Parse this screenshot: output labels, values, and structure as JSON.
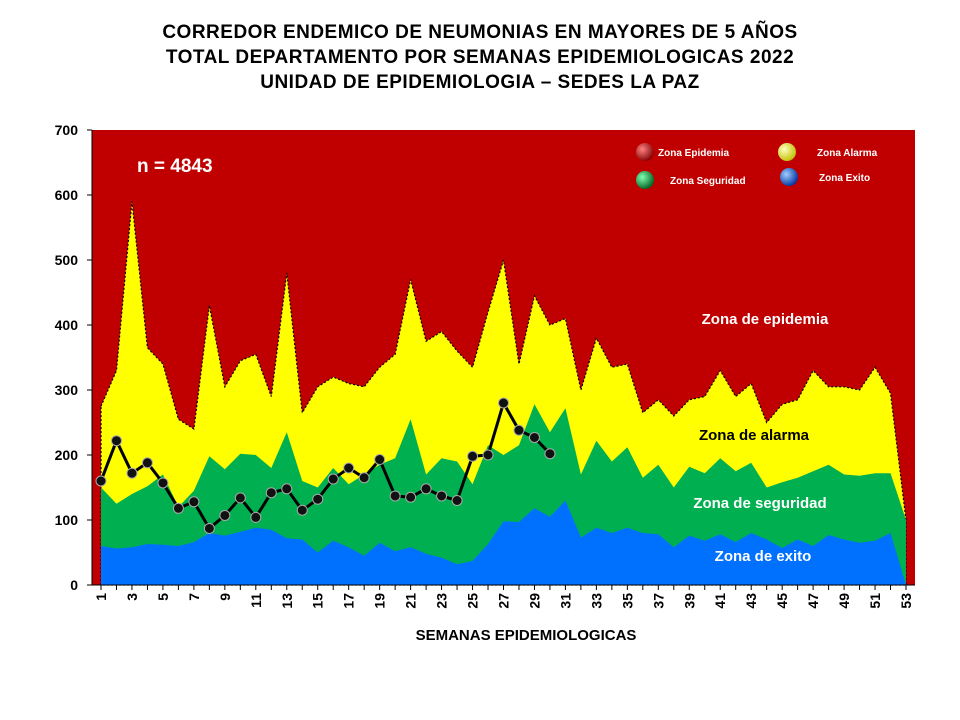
{
  "chart_data": {
    "type": "area",
    "title": [
      "CORREDOR ENDEMICO DE NEUMONIAS EN MAYORES DE 5 AÑOS",
      "TOTAL DEPARTAMENTO POR SEMANAS EPIDEMIOLOGICAS 2022",
      "UNIDAD DE EPIDEMIOLOGIA – SEDES LA PAZ"
    ],
    "x_label": "SEMANAS EPIDEMIOLOGICAS",
    "annotations": {
      "n": "n = 4843",
      "epidemia": "Zona de epidemia",
      "alarma": "Zona de alarma",
      "seguridad": "Zona de  seguridad",
      "exito": "Zona de exito"
    },
    "categories": [
      "1",
      null,
      "3",
      null,
      "5",
      null,
      "7",
      null,
      "9",
      null,
      "11",
      null,
      "13",
      null,
      "15",
      null,
      "17",
      null,
      "19",
      null,
      "21",
      null,
      "23",
      null,
      "25",
      null,
      "27",
      null,
      "29",
      null,
      "31",
      null,
      "33",
      null,
      "35",
      null,
      "37",
      null,
      "39",
      null,
      "41",
      null,
      "43",
      null,
      "45",
      null,
      "47",
      null,
      "49",
      null,
      "51",
      null,
      "53"
    ],
    "epidemic_zone": {
      "name": "Zona Epidemia",
      "color": "#c00000"
    },
    "series": [
      {
        "name": "Zona Alarma",
        "color": "#ffff00",
        "values": [
          275,
          330,
          590,
          365,
          340,
          255,
          240,
          430,
          305,
          345,
          355,
          290,
          480,
          265,
          305,
          320,
          310,
          305,
          335,
          355,
          470,
          375,
          390,
          360,
          335,
          420,
          500,
          340,
          445,
          400,
          410,
          300,
          380,
          335,
          340,
          265,
          285,
          260,
          285,
          290,
          330,
          290,
          310,
          250,
          278,
          285,
          330,
          305,
          305,
          300,
          335,
          295,
          100
        ]
      },
      {
        "name": "Zona Seguridad",
        "color": "#00b050",
        "values": [
          150,
          125,
          140,
          152,
          170,
          120,
          145,
          198,
          178,
          202,
          200,
          180,
          235,
          160,
          150,
          180,
          155,
          170,
          185,
          195,
          255,
          170,
          195,
          190,
          155,
          215,
          200,
          215,
          278,
          235,
          272,
          170,
          222,
          190,
          212,
          165,
          185,
          150,
          182,
          172,
          195,
          175,
          188,
          150,
          158,
          165,
          175,
          185,
          170,
          168,
          172,
          172,
          100
        ]
      },
      {
        "name": "Zona Exito",
        "color": "#0070ff",
        "values": [
          60,
          56,
          58,
          63,
          62,
          60,
          66,
          80,
          76,
          82,
          88,
          85,
          72,
          70,
          50,
          68,
          58,
          45,
          65,
          52,
          58,
          48,
          42,
          32,
          37,
          63,
          98,
          97,
          118,
          105,
          130,
          73,
          88,
          80,
          88,
          80,
          78,
          58,
          76,
          68,
          78,
          66,
          80,
          70,
          57,
          70,
          60,
          77,
          70,
          65,
          68,
          80,
          0
        ]
      }
    ],
    "cases": {
      "color": "#000000",
      "values": [
        160,
        222,
        172,
        188,
        157,
        118,
        128,
        87,
        107,
        134,
        104,
        142,
        148,
        115,
        132,
        163,
        180,
        165,
        193,
        137,
        135,
        148,
        137,
        130,
        198,
        200,
        280,
        238,
        227,
        202,
        null,
        null,
        null,
        null,
        null,
        null,
        null,
        null,
        null,
        null,
        null,
        null,
        null,
        null,
        null,
        null,
        null,
        null,
        null,
        null,
        null,
        null,
        null
      ]
    },
    "ylim": [
      0,
      700
    ],
    "yticks": [
      0,
      100,
      200,
      300,
      400,
      500,
      600,
      700
    ],
    "grid": false
  }
}
